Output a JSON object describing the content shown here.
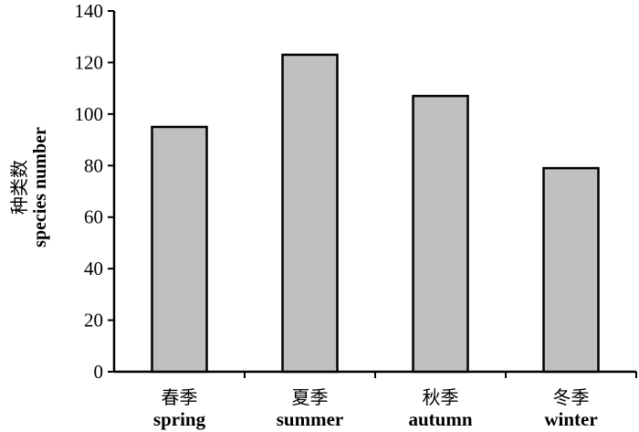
{
  "chart_data": {
    "type": "bar",
    "categories": [
      {
        "cn": "春季",
        "en": "spring"
      },
      {
        "cn": "夏季",
        "en": "summer"
      },
      {
        "cn": "秋季",
        "en": "autumn"
      },
      {
        "cn": "冬季",
        "en": "winter"
      }
    ],
    "values": [
      95,
      123,
      107,
      79
    ],
    "ylabel_cn": "种类数",
    "ylabel_en": "species number",
    "ylim": [
      0,
      140
    ],
    "yticks": [
      0,
      20,
      40,
      60,
      80,
      100,
      120,
      140
    ],
    "grid": false,
    "bar_color": "#c0c0c0",
    "bar_edge_color": "#000000"
  }
}
